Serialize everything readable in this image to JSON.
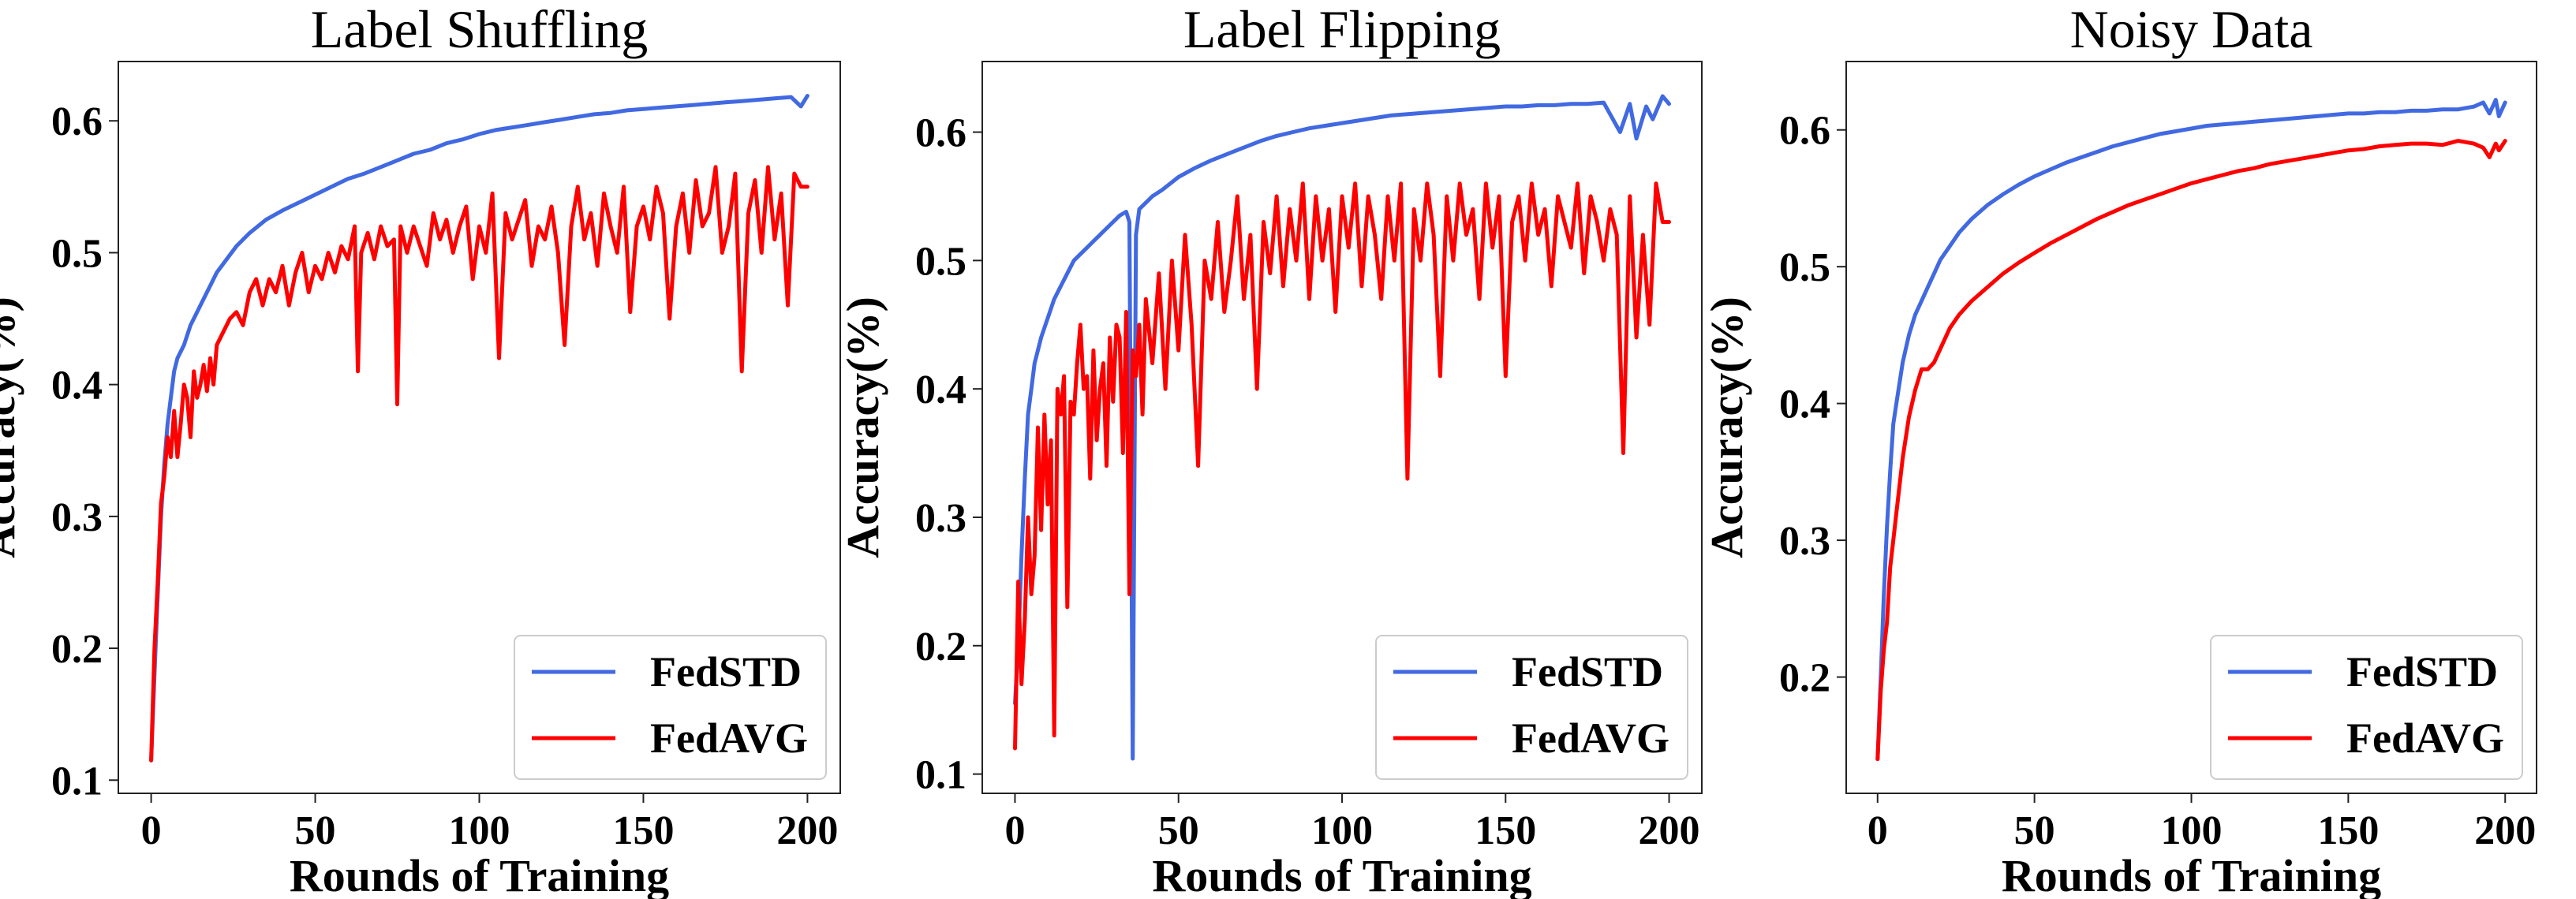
{
  "colors": {
    "FedSTD": "#4169e1",
    "FedAVG": "#ff0000"
  },
  "chart_data": [
    {
      "type": "line",
      "title": "Label Shuffling",
      "xlabel": "Rounds of Training",
      "ylabel": "Accuracy(%)",
      "xlim": [
        -10,
        210
      ],
      "ylim": [
        0.09,
        0.645
      ],
      "xticks": [
        0,
        50,
        100,
        150,
        200
      ],
      "yticks": [
        0.1,
        0.2,
        0.3,
        0.4,
        0.5,
        0.6
      ],
      "legend": "lower-right",
      "grid": false,
      "series": [
        {
          "name": "FedSTD",
          "color": "#4169e1",
          "x": [
            0,
            1,
            2,
            3,
            4,
            5,
            6,
            7,
            8,
            10,
            12,
            14,
            16,
            18,
            20,
            23,
            26,
            30,
            35,
            40,
            45,
            50,
            55,
            60,
            65,
            70,
            75,
            80,
            85,
            90,
            95,
            100,
            105,
            110,
            115,
            120,
            125,
            130,
            135,
            140,
            145,
            150,
            155,
            160,
            165,
            170,
            175,
            180,
            185,
            190,
            195,
            198,
            200
          ],
          "y": [
            0.115,
            0.18,
            0.24,
            0.3,
            0.34,
            0.37,
            0.39,
            0.41,
            0.42,
            0.43,
            0.445,
            0.455,
            0.465,
            0.475,
            0.485,
            0.495,
            0.505,
            0.515,
            0.525,
            0.532,
            0.538,
            0.544,
            0.55,
            0.556,
            0.56,
            0.565,
            0.57,
            0.575,
            0.578,
            0.583,
            0.586,
            0.59,
            0.593,
            0.595,
            0.597,
            0.599,
            0.601,
            0.603,
            0.605,
            0.606,
            0.608,
            0.609,
            0.61,
            0.611,
            0.612,
            0.613,
            0.614,
            0.615,
            0.616,
            0.617,
            0.618,
            0.611,
            0.619
          ]
        },
        {
          "name": "FedAVG",
          "color": "#ff0000",
          "x": [
            0,
            1,
            2,
            3,
            4,
            5,
            6,
            7,
            8,
            9,
            10,
            11,
            12,
            13,
            14,
            15,
            16,
            17,
            18,
            19,
            20,
            22,
            24,
            26,
            28,
            30,
            32,
            34,
            36,
            38,
            40,
            42,
            44,
            46,
            48,
            50,
            52,
            54,
            56,
            58,
            60,
            62,
            63,
            64,
            66,
            68,
            70,
            72,
            74,
            75,
            76,
            78,
            80,
            82,
            84,
            86,
            88,
            90,
            92,
            94,
            96,
            98,
            100,
            102,
            104,
            106,
            108,
            110,
            112,
            114,
            116,
            118,
            120,
            122,
            124,
            126,
            128,
            130,
            132,
            134,
            136,
            138,
            140,
            142,
            144,
            146,
            148,
            150,
            152,
            154,
            156,
            158,
            160,
            162,
            164,
            166,
            168,
            170,
            172,
            174,
            176,
            178,
            180,
            182,
            184,
            186,
            188,
            190,
            192,
            194,
            196,
            198,
            200
          ],
          "y": [
            0.115,
            0.2,
            0.25,
            0.31,
            0.33,
            0.36,
            0.345,
            0.38,
            0.345,
            0.37,
            0.4,
            0.39,
            0.36,
            0.41,
            0.39,
            0.4,
            0.415,
            0.395,
            0.42,
            0.4,
            0.43,
            0.44,
            0.45,
            0.455,
            0.445,
            0.47,
            0.48,
            0.46,
            0.48,
            0.47,
            0.49,
            0.46,
            0.485,
            0.5,
            0.47,
            0.49,
            0.48,
            0.5,
            0.485,
            0.505,
            0.495,
            0.52,
            0.41,
            0.5,
            0.515,
            0.495,
            0.52,
            0.505,
            0.51,
            0.385,
            0.52,
            0.5,
            0.52,
            0.505,
            0.49,
            0.53,
            0.51,
            0.525,
            0.5,
            0.52,
            0.535,
            0.48,
            0.52,
            0.5,
            0.545,
            0.42,
            0.53,
            0.51,
            0.525,
            0.54,
            0.49,
            0.52,
            0.51,
            0.535,
            0.5,
            0.43,
            0.52,
            0.55,
            0.51,
            0.53,
            0.49,
            0.545,
            0.52,
            0.5,
            0.55,
            0.455,
            0.52,
            0.535,
            0.51,
            0.55,
            0.53,
            0.45,
            0.52,
            0.545,
            0.5,
            0.555,
            0.52,
            0.53,
            0.565,
            0.5,
            0.52,
            0.56,
            0.41,
            0.53,
            0.555,
            0.5,
            0.565,
            0.51,
            0.545,
            0.46,
            0.56,
            0.55,
            0.55
          ]
        }
      ]
    },
    {
      "type": "line",
      "title": "Label Flipping",
      "xlabel": "Rounds of Training",
      "ylabel": "Accuracy(%)",
      "xlim": [
        -10,
        210
      ],
      "ylim": [
        0.085,
        0.655
      ],
      "xticks": [
        0,
        50,
        100,
        150,
        200
      ],
      "yticks": [
        0.1,
        0.2,
        0.3,
        0.4,
        0.5,
        0.6
      ],
      "legend": "lower-right",
      "grid": false,
      "series": [
        {
          "name": "FedSTD",
          "color": "#4169e1",
          "x": [
            0,
            1,
            2,
            3,
            4,
            5,
            6,
            7,
            8,
            10,
            12,
            14,
            16,
            18,
            20,
            22,
            24,
            26,
            28,
            30,
            32,
            34,
            35,
            36,
            37,
            38,
            40,
            42,
            45,
            50,
            55,
            60,
            65,
            70,
            75,
            80,
            85,
            90,
            95,
            100,
            105,
            110,
            115,
            120,
            125,
            130,
            135,
            140,
            145,
            150,
            155,
            160,
            165,
            170,
            175,
            180,
            185,
            188,
            190,
            193,
            195,
            198,
            200
          ],
          "y": [
            0.155,
            0.2,
            0.27,
            0.33,
            0.38,
            0.4,
            0.42,
            0.43,
            0.44,
            0.455,
            0.47,
            0.48,
            0.49,
            0.5,
            0.505,
            0.51,
            0.515,
            0.52,
            0.525,
            0.53,
            0.535,
            0.538,
            0.53,
            0.112,
            0.52,
            0.54,
            0.545,
            0.55,
            0.555,
            0.565,
            0.572,
            0.578,
            0.583,
            0.588,
            0.593,
            0.597,
            0.6,
            0.603,
            0.605,
            0.607,
            0.609,
            0.611,
            0.613,
            0.614,
            0.615,
            0.616,
            0.617,
            0.618,
            0.619,
            0.62,
            0.62,
            0.621,
            0.621,
            0.622,
            0.622,
            0.623,
            0.6,
            0.622,
            0.595,
            0.62,
            0.61,
            0.628,
            0.622
          ]
        },
        {
          "name": "FedAVG",
          "color": "#ff0000",
          "x": [
            0,
            1,
            2,
            3,
            4,
            5,
            6,
            7,
            8,
            9,
            10,
            11,
            12,
            13,
            14,
            15,
            16,
            17,
            18,
            19,
            20,
            21,
            22,
            23,
            24,
            25,
            26,
            27,
            28,
            29,
            30,
            31,
            32,
            33,
            34,
            35,
            36,
            37,
            38,
            39,
            40,
            42,
            44,
            46,
            48,
            50,
            52,
            54,
            56,
            58,
            60,
            62,
            64,
            66,
            68,
            70,
            72,
            74,
            76,
            78,
            80,
            82,
            84,
            86,
            88,
            90,
            92,
            94,
            96,
            98,
            100,
            102,
            104,
            106,
            108,
            110,
            112,
            114,
            116,
            118,
            120,
            122,
            124,
            126,
            128,
            130,
            132,
            134,
            136,
            138,
            140,
            142,
            144,
            146,
            148,
            150,
            152,
            154,
            156,
            158,
            160,
            162,
            164,
            166,
            168,
            170,
            172,
            174,
            176,
            178,
            180,
            182,
            184,
            186,
            188,
            190,
            192,
            194,
            196,
            198,
            200
          ],
          "y": [
            0.12,
            0.25,
            0.17,
            0.22,
            0.3,
            0.24,
            0.27,
            0.37,
            0.29,
            0.38,
            0.31,
            0.36,
            0.13,
            0.4,
            0.38,
            0.41,
            0.23,
            0.39,
            0.38,
            0.42,
            0.45,
            0.4,
            0.41,
            0.33,
            0.43,
            0.36,
            0.4,
            0.42,
            0.34,
            0.44,
            0.39,
            0.45,
            0.44,
            0.35,
            0.46,
            0.24,
            0.43,
            0.41,
            0.45,
            0.38,
            0.47,
            0.42,
            0.49,
            0.4,
            0.5,
            0.43,
            0.52,
            0.45,
            0.34,
            0.5,
            0.47,
            0.53,
            0.46,
            0.5,
            0.55,
            0.47,
            0.52,
            0.4,
            0.53,
            0.49,
            0.55,
            0.48,
            0.54,
            0.5,
            0.56,
            0.47,
            0.55,
            0.5,
            0.54,
            0.46,
            0.55,
            0.51,
            0.56,
            0.48,
            0.55,
            0.52,
            0.47,
            0.55,
            0.5,
            0.56,
            0.33,
            0.54,
            0.5,
            0.56,
            0.52,
            0.41,
            0.55,
            0.5,
            0.56,
            0.52,
            0.54,
            0.47,
            0.56,
            0.51,
            0.55,
            0.41,
            0.53,
            0.55,
            0.5,
            0.56,
            0.52,
            0.54,
            0.48,
            0.55,
            0.53,
            0.51,
            0.56,
            0.49,
            0.55,
            0.53,
            0.5,
            0.54,
            0.52,
            0.35,
            0.55,
            0.44,
            0.52,
            0.45,
            0.56,
            0.53,
            0.53
          ]
        }
      ]
    },
    {
      "type": "line",
      "title": "Noisy Data",
      "xlabel": "Rounds of Training",
      "ylabel": "Accuracy(%)",
      "xlim": [
        -10,
        210
      ],
      "ylim": [
        0.115,
        0.65
      ],
      "xticks": [
        0,
        50,
        100,
        150,
        200
      ],
      "yticks": [
        0.2,
        0.3,
        0.4,
        0.5,
        0.6
      ],
      "legend": "lower-right",
      "grid": false,
      "series": [
        {
          "name": "FedSTD",
          "color": "#4169e1",
          "x": [
            0,
            1,
            2,
            3,
            4,
            5,
            6,
            7,
            8,
            10,
            12,
            14,
            16,
            18,
            20,
            23,
            26,
            30,
            35,
            40,
            45,
            50,
            55,
            60,
            65,
            70,
            75,
            80,
            85,
            90,
            95,
            100,
            105,
            110,
            115,
            120,
            125,
            130,
            135,
            140,
            145,
            150,
            155,
            160,
            165,
            170,
            175,
            180,
            185,
            190,
            193,
            195,
            197,
            198,
            200
          ],
          "y": [
            0.14,
            0.2,
            0.26,
            0.31,
            0.35,
            0.385,
            0.4,
            0.415,
            0.43,
            0.45,
            0.465,
            0.475,
            0.485,
            0.495,
            0.505,
            0.515,
            0.525,
            0.535,
            0.545,
            0.553,
            0.56,
            0.566,
            0.571,
            0.576,
            0.58,
            0.584,
            0.588,
            0.591,
            0.594,
            0.597,
            0.599,
            0.601,
            0.603,
            0.604,
            0.605,
            0.606,
            0.607,
            0.608,
            0.609,
            0.61,
            0.611,
            0.612,
            0.612,
            0.613,
            0.613,
            0.614,
            0.614,
            0.615,
            0.615,
            0.617,
            0.62,
            0.612,
            0.622,
            0.61,
            0.62
          ]
        },
        {
          "name": "FedAVG",
          "color": "#ff0000",
          "x": [
            0,
            1,
            2,
            3,
            4,
            5,
            6,
            7,
            8,
            10,
            12,
            14,
            16,
            18,
            20,
            23,
            26,
            30,
            35,
            40,
            45,
            50,
            55,
            60,
            65,
            70,
            75,
            80,
            85,
            90,
            95,
            100,
            105,
            110,
            115,
            120,
            125,
            130,
            135,
            140,
            145,
            150,
            155,
            160,
            165,
            170,
            175,
            180,
            185,
            190,
            193,
            195,
            197,
            198,
            200
          ],
          "y": [
            0.14,
            0.19,
            0.22,
            0.24,
            0.28,
            0.3,
            0.32,
            0.34,
            0.36,
            0.39,
            0.41,
            0.425,
            0.425,
            0.43,
            0.44,
            0.455,
            0.465,
            0.475,
            0.485,
            0.495,
            0.503,
            0.51,
            0.517,
            0.523,
            0.529,
            0.535,
            0.54,
            0.545,
            0.549,
            0.553,
            0.557,
            0.561,
            0.564,
            0.567,
            0.57,
            0.572,
            0.575,
            0.577,
            0.579,
            0.581,
            0.583,
            0.585,
            0.586,
            0.588,
            0.589,
            0.59,
            0.59,
            0.589,
            0.592,
            0.59,
            0.587,
            0.58,
            0.59,
            0.585,
            0.592
          ]
        }
      ]
    }
  ]
}
